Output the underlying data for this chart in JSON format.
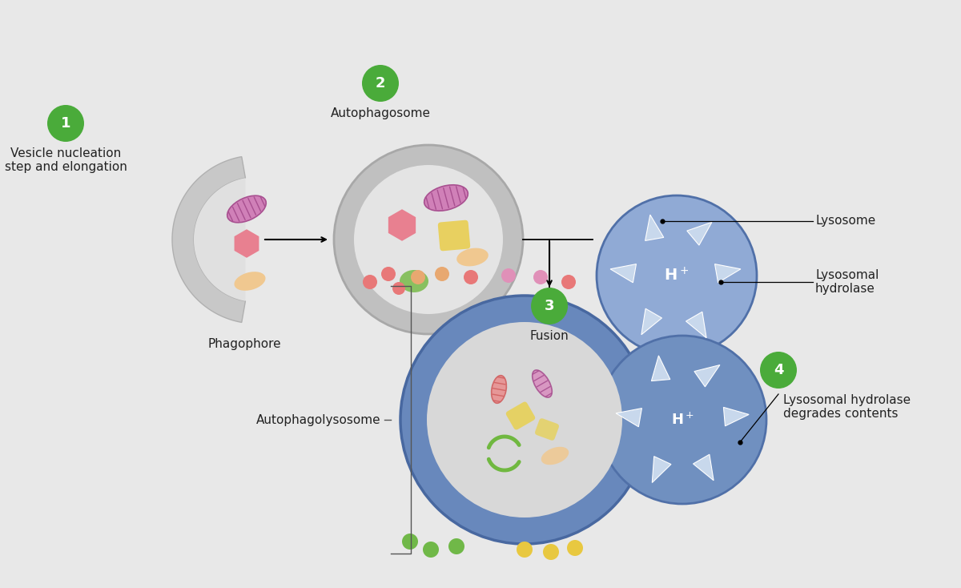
{
  "bg_outer": "#ffffff",
  "bg_cell": "#e8e8e8",
  "bg_cell_edge": "#c0c0c0",
  "step1_label": "Vesicle nucleation\nstep and elongation",
  "step2_label": "Autophagosome",
  "step3_label": "Fusion",
  "step4_label": "Lysosomal hydrolase\ndegrades contents",
  "phagophore_label": "Phagophore",
  "lysosome_label": "Lysosome",
  "lysosomal_hydrolase_label": "Lysosomal\nhydrolase",
  "autophagolysosome_label": "Autophagolysosome",
  "green_badge_color": "#4aab3a",
  "mito_pink_color": "#d080b8",
  "mito_pink_stripe": "#a85090",
  "mito_red_color": "#e89090",
  "mito_red_stripe": "#c06060",
  "mito_purple_color": "#d890c0",
  "mito_purple_stripe": "#b060a0",
  "hexagon_color": "#e88090",
  "square_color": "#e8d060",
  "tan_oval_color": "#f0c890",
  "green_oval_color": "#88c060",
  "lyso_blue": "#7090c0",
  "lyso_blue_light": "#90aad5",
  "lyso_border": "#5070a8",
  "autophagosome_ring": "#c0c0c0",
  "autophagosome_ring_dark": "#a8a8a8",
  "autophagosome_inner": "#e4e4e4",
  "autolyso_ring": "#6888bc",
  "autolyso_ring_dark": "#4868a0",
  "autolyso_inner": "#d8d8d8",
  "triangle_color": "#c8d8ec",
  "dot_pink": "#e87878",
  "dot_peach": "#e8a870",
  "dot_mauve": "#e090b8",
  "dot_green": "#70b848",
  "dot_yellow": "#e8c840",
  "font_size": 11,
  "font_size_badge": 13
}
